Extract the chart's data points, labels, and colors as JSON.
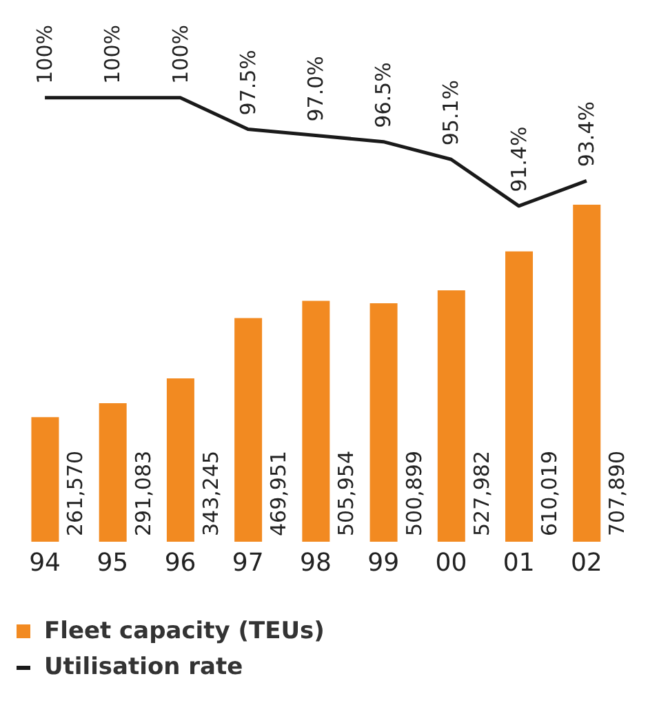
{
  "chart_data": {
    "type": "bar",
    "categories": [
      "94",
      "95",
      "96",
      "97",
      "98",
      "99",
      "00",
      "01",
      "02"
    ],
    "series": [
      {
        "name": "Fleet capacity (TEUs)",
        "color": "#f28a21",
        "values": [
          261570,
          291083,
          343245,
          469951,
          505954,
          500899,
          527982,
          610019,
          707890
        ],
        "value_labels": [
          "261,570",
          "291,083",
          "343,245",
          "469,951",
          "505,954",
          "500,899",
          "527,982",
          "610,019",
          "707,890"
        ]
      },
      {
        "name": "Utilisation rate",
        "type": "line",
        "axis": "y2",
        "color": "#1a1a1a",
        "values": [
          100,
          100,
          100,
          97.5,
          97.0,
          96.5,
          95.1,
          91.4,
          93.4
        ],
        "value_labels": [
          "100%",
          "100%",
          "100%",
          "97.5%",
          "97.0%",
          "96.5%",
          "95.1%",
          "91.4%",
          "93.4%"
        ]
      }
    ],
    "tick_labels": "x",
    "legend": "bottom",
    "marker": "none",
    "line_style": "solid"
  }
}
